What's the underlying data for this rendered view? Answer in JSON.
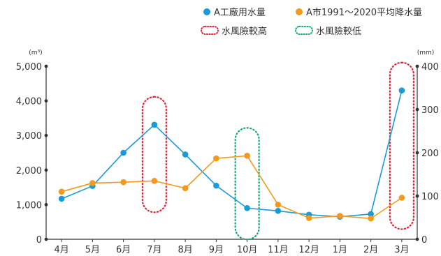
{
  "chart_data": {
    "type": "line",
    "categories": [
      "4月",
      "5月",
      "6月",
      "7月",
      "8月",
      "9月",
      "10月",
      "11月",
      "12月",
      "1月",
      "2月",
      "3月"
    ],
    "series": [
      {
        "name": "A工廠用水量",
        "axis": "left",
        "color": "#1a9bd7",
        "values": [
          1170,
          1540,
          2500,
          3310,
          2450,
          1550,
          900,
          820,
          710,
          650,
          730,
          4300
        ]
      },
      {
        "name": "A市1991～2020平均降水量",
        "axis": "right",
        "color": "#f39a1e",
        "values": [
          110,
          130,
          132,
          135,
          118,
          187,
          193,
          80,
          49,
          54,
          48,
          96
        ]
      }
    ],
    "left_axis": {
      "unit": "(m³)",
      "ylim": [
        0,
        5000
      ],
      "ticks": [
        "0",
        "1,000",
        "2,000",
        "3,000",
        "4,000",
        "5,000"
      ]
    },
    "right_axis": {
      "unit": "(mm)",
      "ylim": [
        0,
        400
      ],
      "ticks": [
        "0",
        "100",
        "200",
        "300",
        "400"
      ]
    },
    "highlights": [
      {
        "label": "水風險較高",
        "color": "#e4223a",
        "months": [
          "7月",
          "3月"
        ]
      },
      {
        "label": "水風險較低",
        "color": "#19a77a",
        "months": [
          "10月"
        ]
      }
    ],
    "grid": false,
    "legend_position": "top-right"
  },
  "colors": {
    "axis": "#333333"
  }
}
